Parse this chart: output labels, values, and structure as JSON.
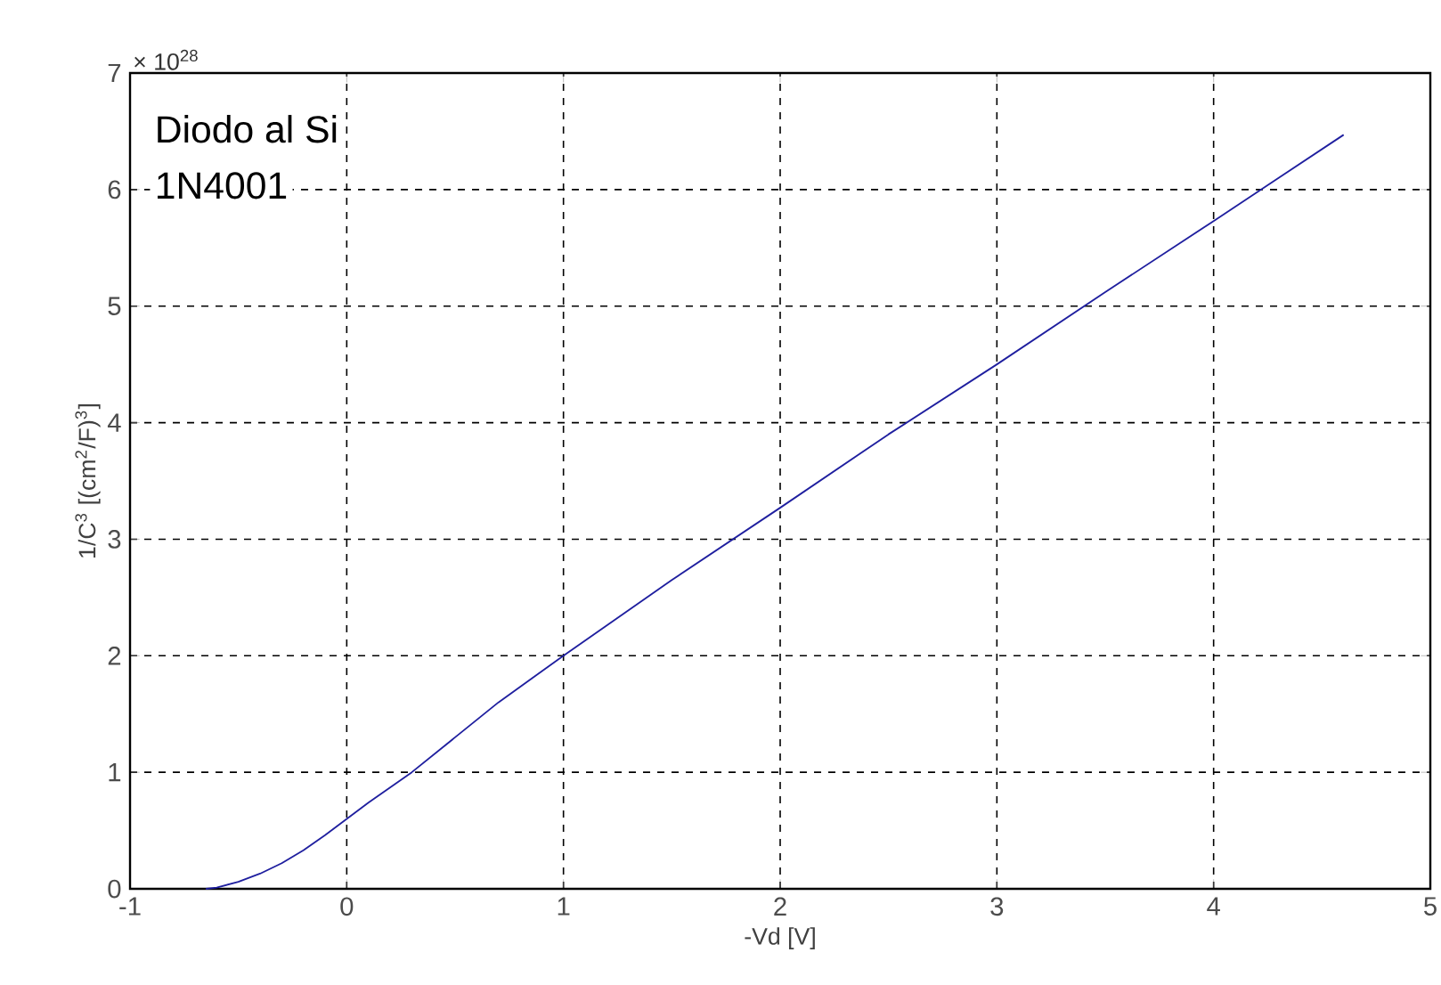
{
  "chart_data": {
    "type": "line",
    "xlabel": "-Vd [V]",
    "ylabel": "1/C$^{3}$ [(cm$^{2}$/F)$^{3}$]",
    "annotations": [
      "× 10$^{28}$",
      "Diodo al Si",
      "1N4001"
    ],
    "x": [
      -0.65,
      -0.6,
      -0.5,
      -0.4,
      -0.3,
      -0.2,
      -0.1,
      0,
      0.1,
      0.2,
      0.3,
      0.5,
      0.7,
      1,
      1.5,
      2,
      2.5,
      3,
      3.5,
      4,
      4.3,
      4.6
    ],
    "series": [
      {
        "color": "#1f1f9f",
        "values": [
          0,
          0.01,
          0.06,
          0.13,
          0.22,
          0.33,
          0.46,
          0.6,
          0.74,
          0.87,
          1.0,
          1.3,
          1.6,
          2.0,
          2.65,
          3.27,
          3.9,
          4.5,
          5.12,
          5.73,
          6.1,
          6.47
        ]
      }
    ],
    "xlim": [
      -1,
      5
    ],
    "ylim": [
      0,
      7
    ],
    "xticks": [
      -1,
      0,
      1,
      2,
      3,
      4,
      5
    ],
    "yticks": [
      0,
      1,
      2,
      3,
      4,
      5,
      6,
      7
    ],
    "grid": true,
    "line_style": "solid",
    "marker": "none"
  }
}
